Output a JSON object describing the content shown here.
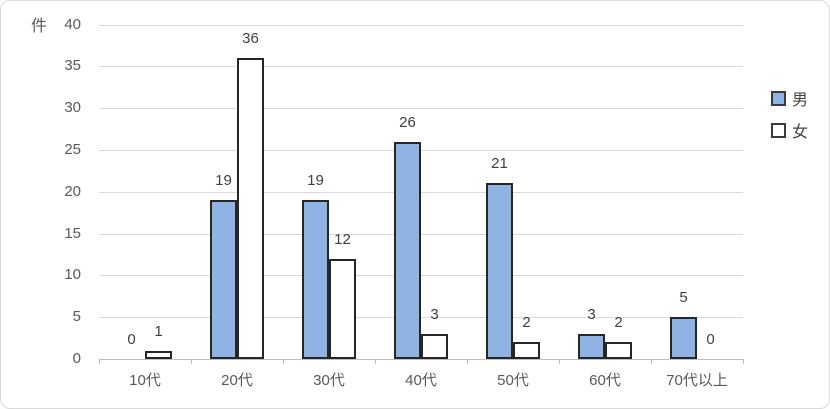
{
  "chart_data": {
    "type": "bar",
    "title": "",
    "ylabel": "件",
    "xlabel": "",
    "categories": [
      "10代",
      "20代",
      "30代",
      "40代",
      "50代",
      "60代",
      "70代以上"
    ],
    "series": [
      {
        "name": "男",
        "key": "male",
        "fill": "#8FB4E3",
        "values": [
          0,
          19,
          19,
          26,
          21,
          3,
          5
        ]
      },
      {
        "name": "女",
        "key": "female",
        "fill": "#FFFFFF",
        "values": [
          1,
          36,
          12,
          3,
          2,
          2,
          0
        ]
      }
    ],
    "ylim": [
      0,
      40
    ],
    "yticks": [
      0,
      5,
      10,
      15,
      20,
      25,
      30,
      35,
      40
    ],
    "grid": true,
    "legend_position": "right",
    "data_labels": true
  },
  "colors": {
    "male_fill": "#8FB4E3",
    "female_fill": "#FFFFFF",
    "bar_border": "#262626",
    "gridline": "#D9D9D9",
    "axis_line": "#BFBFBF",
    "tick_label_text": "#595959",
    "data_label_text": "#404040",
    "legend_text": "#444444",
    "chart_border": "#D9D9D9"
  }
}
